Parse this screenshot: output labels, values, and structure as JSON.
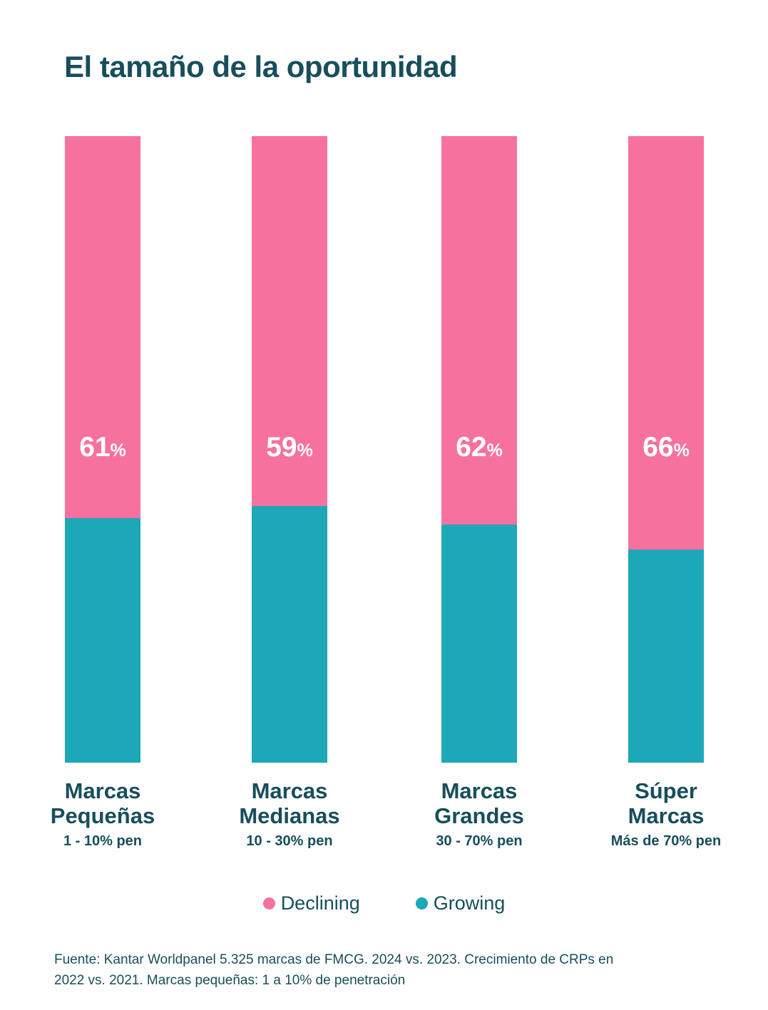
{
  "title": "El tamaño de la oportunidad",
  "colors": {
    "declining": "#F7719F",
    "growing": "#1CA8B6",
    "heading_text": "#174E5C",
    "value_text": "#FFFFFF",
    "background": "#FFFFFF"
  },
  "chart_data": {
    "type": "bar",
    "stacked": true,
    "orientation": "vertical",
    "units": "%",
    "ylim": [
      0,
      100
    ],
    "grid": false,
    "legend_position": "bottom",
    "categories": [
      "Marcas Pequeñas",
      "Marcas Medianas",
      "Marcas Grandes",
      "Súper Marcas"
    ],
    "category_lines": [
      [
        "Marcas",
        "Pequeñas"
      ],
      [
        "Marcas",
        "Medianas"
      ],
      [
        "Marcas",
        "Grandes"
      ],
      [
        "Súper",
        "Marcas"
      ]
    ],
    "category_sublabels": [
      "1 - 10% pen",
      "10 - 30% pen",
      "30 - 70% pen",
      "Más de 70% pen"
    ],
    "series": [
      {
        "name": "Declining",
        "color": "#F7719F",
        "values": [
          61,
          59,
          62,
          66
        ]
      },
      {
        "name": "Growing",
        "color": "#1CA8B6",
        "values": [
          39,
          41,
          38,
          34
        ]
      }
    ]
  },
  "legend": {
    "items": [
      {
        "label": "Declining",
        "color": "#F7719F"
      },
      {
        "label": "Growing",
        "color": "#1CA8B6"
      }
    ]
  },
  "footer": {
    "line1": "Fuente: Kantar Worldpanel 5.325 marcas de FMCG. 2024 vs. 2023. Crecimiento de CRPs en",
    "line2": "2022 vs. 2021. Marcas pequeñas: 1 a 10% de penetración"
  }
}
